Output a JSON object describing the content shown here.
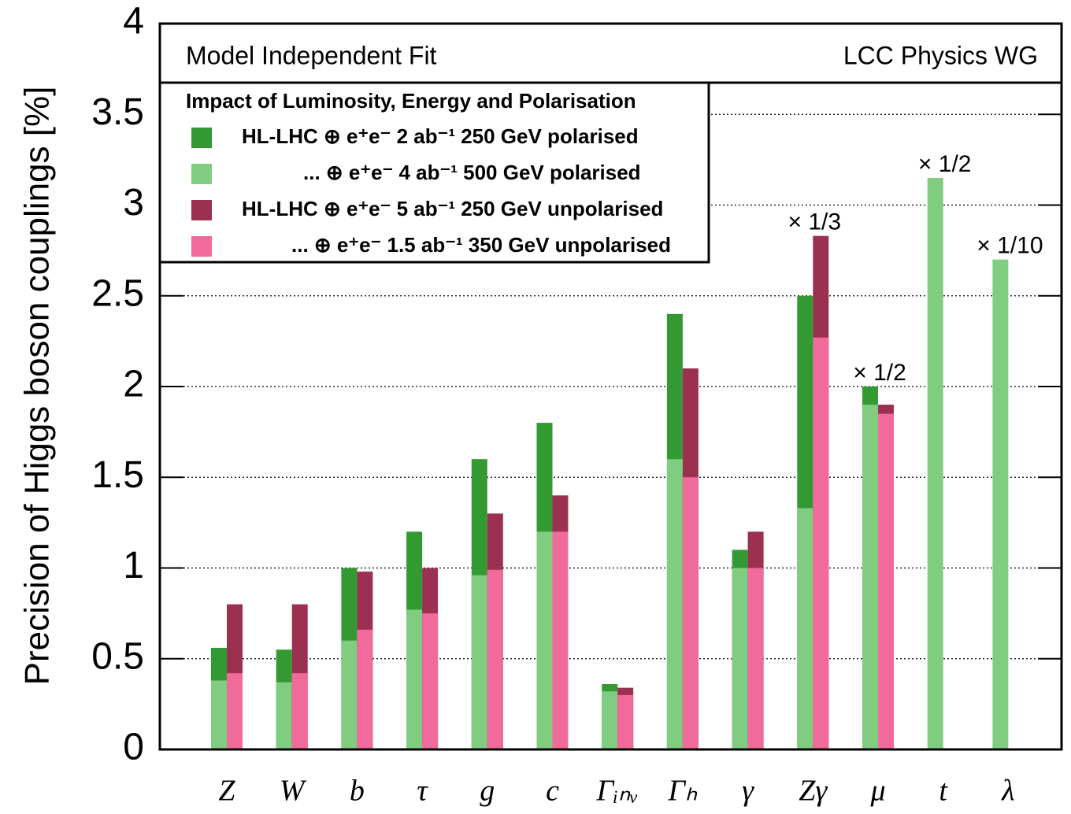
{
  "chart_data": {
    "type": "bar",
    "title": "Model Independent Fit",
    "subtitle": "LCC Physics WG",
    "legend_title": "Impact of Luminosity, Energy and Polarisation",
    "ylabel": "Precision of Higgs boson couplings [%]",
    "categories": [
      "Z",
      "W",
      "b",
      "τ",
      "g",
      "c",
      "Γᵢₙᵥ",
      "Γₕ",
      "γ",
      "Zγ",
      "μ",
      "t",
      "λ"
    ],
    "series": [
      {
        "name": "HL-LHC ⊕ e⁺e⁻ 2 ab⁻¹ 250 GeV polarised",
        "color": "#339933",
        "values": [
          0.56,
          0.55,
          1.0,
          1.2,
          1.6,
          1.8,
          0.36,
          2.4,
          1.1,
          2.5,
          2.0,
          null,
          null
        ]
      },
      {
        "name": "... ⊕ e⁺e⁻ 4 ab⁻¹ 500 GeV polarised",
        "color": "#80cc80",
        "values": [
          0.38,
          0.37,
          0.6,
          0.77,
          0.96,
          1.2,
          0.32,
          1.6,
          1.0,
          1.33,
          1.9,
          3.15,
          2.7
        ]
      },
      {
        "name": "HL-LHC ⊕ e⁺e⁻ 5 ab⁻¹ 250 GeV unpolarised",
        "color": "#9c3050",
        "values": [
          0.8,
          0.8,
          0.98,
          1.0,
          1.3,
          1.4,
          0.34,
          2.1,
          1.2,
          2.83,
          1.9,
          null,
          null
        ]
      },
      {
        "name": "... ⊕ e⁺e⁻ 1.5 ab⁻¹ 350 GeV unpolarised",
        "color": "#f06a9c",
        "values": [
          0.42,
          0.42,
          0.66,
          0.75,
          0.99,
          1.2,
          0.3,
          1.5,
          1.0,
          2.27,
          1.85,
          null,
          null
        ]
      }
    ],
    "annotations": [
      {
        "text": "× 1/3",
        "category": "Zγ"
      },
      {
        "text": "× 1/2",
        "category": "μ"
      },
      {
        "text": "× 1/2",
        "category": "t"
      },
      {
        "text": "× 1/10",
        "category": "λ"
      }
    ],
    "ylim": [
      0,
      4
    ],
    "yticks": [
      0,
      0.5,
      1,
      1.5,
      2,
      2.5,
      3,
      3.5,
      4
    ],
    "grid": true
  }
}
